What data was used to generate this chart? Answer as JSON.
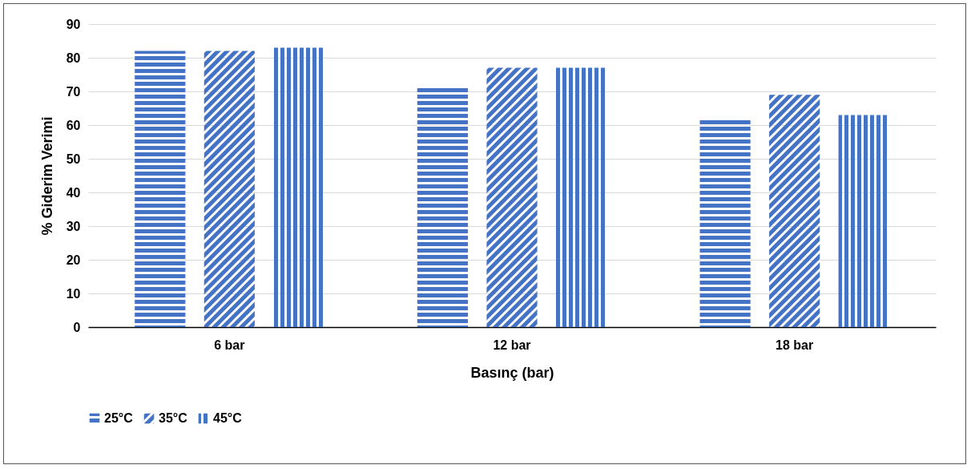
{
  "chart_data": {
    "type": "bar",
    "xlabel": "Basınç (bar)",
    "ylabel": "% Giderim Verimi",
    "categories": [
      "6 bar",
      "12 bar",
      "18 bar"
    ],
    "series": [
      {
        "name": "25°C",
        "color": "#4472c4",
        "values": [
          82,
          71,
          62
        ]
      },
      {
        "name": "35°C",
        "color": "#4472c4",
        "values": [
          82,
          77,
          69
        ]
      },
      {
        "name": "45°C",
        "color": "#4472c4",
        "values": [
          83,
          77,
          63
        ]
      }
    ],
    "ylim": [
      0,
      90
    ],
    "yticks": [
      0,
      10,
      20,
      30,
      40,
      50,
      60,
      70,
      80,
      90
    ],
    "grid": "y",
    "legend": "bottom"
  }
}
